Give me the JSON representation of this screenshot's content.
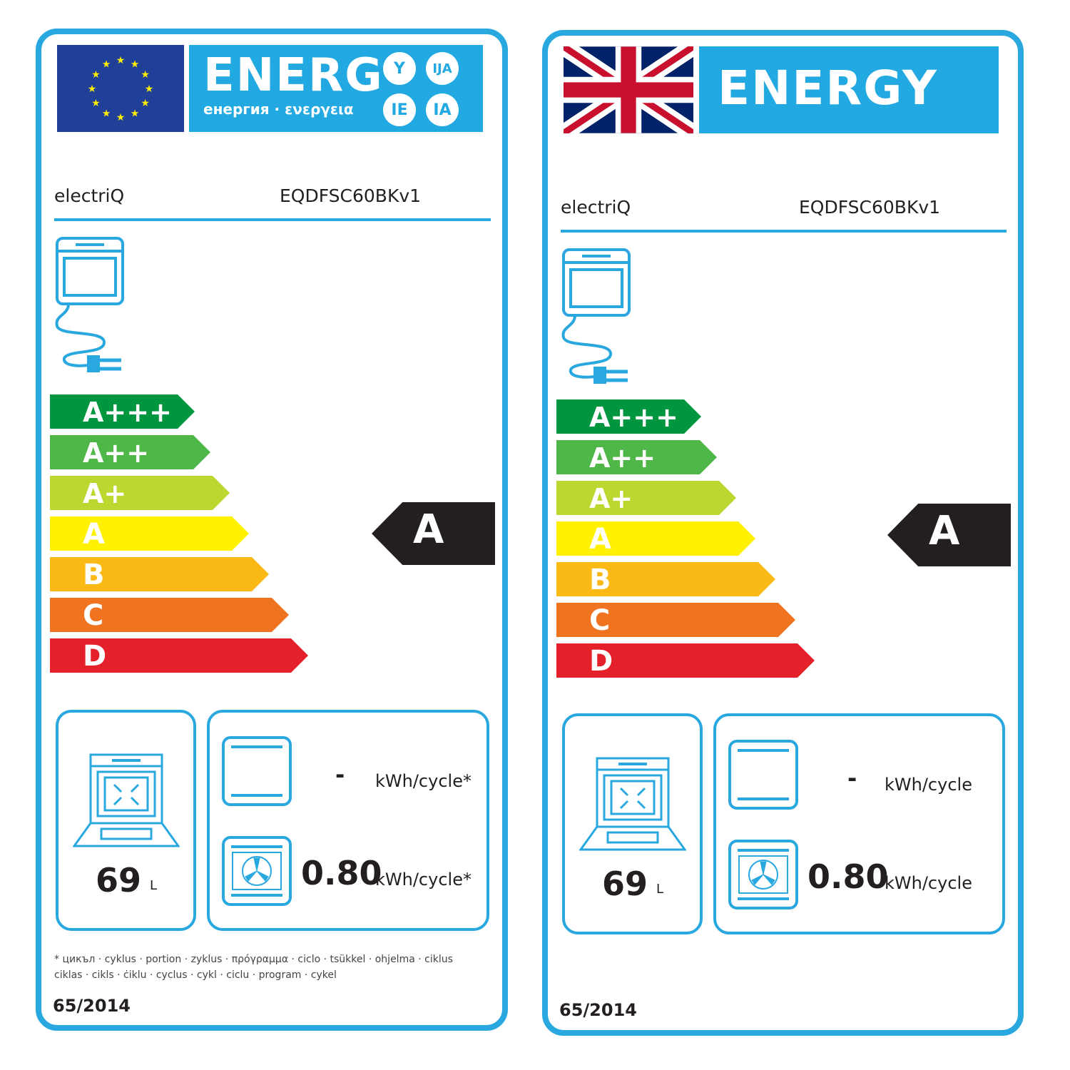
{
  "labels": [
    {
      "flag": "eu-flag",
      "header_title": "ENERG",
      "header_subtitle": "енергия · ενεργεια",
      "header_suffixes": [
        "Y",
        "IJA",
        "IE",
        "IA"
      ],
      "brand": "electriQ",
      "model": "EQDFSC60BKv1",
      "classes": [
        "A+++",
        "A++",
        "A+",
        "A",
        "B",
        "C",
        "D"
      ],
      "rating": "A",
      "volume": "69",
      "volume_unit": "L",
      "conventional_energy": "-",
      "conventional_unit": "kWh/cycle*",
      "fan_energy": "0.80",
      "fan_unit": "kWh/cycle*",
      "footnote": [
        "* цикъл · cyklus · portion · zyklus · πρόγραμμα · ciclo · tsükkel · ohjelma · ciklus",
        "ciklas · cikls · ċiklu · cyclus · cykl · ciclu · program · cykel"
      ],
      "regulation": "65/2014"
    },
    {
      "flag": "uk-flag",
      "header_title": "ENERGY",
      "brand": "electriQ",
      "model": "EQDFSC60BKv1",
      "classes": [
        "A+++",
        "A++",
        "A+",
        "A",
        "B",
        "C",
        "D"
      ],
      "rating": "A",
      "volume": "69",
      "volume_unit": "L",
      "conventional_energy": "-",
      "conventional_unit": "kWh/cycle",
      "fan_energy": "0.80",
      "fan_unit": "kWh/cycle",
      "regulation": "65/2014"
    }
  ],
  "colors": {
    "border": "#29a8e0",
    "classes": [
      "#00963f",
      "#4fb748",
      "#bed630",
      "#fff100",
      "#fbb916",
      "#f0731f",
      "#e4202a"
    ],
    "rating": "#231f20"
  }
}
